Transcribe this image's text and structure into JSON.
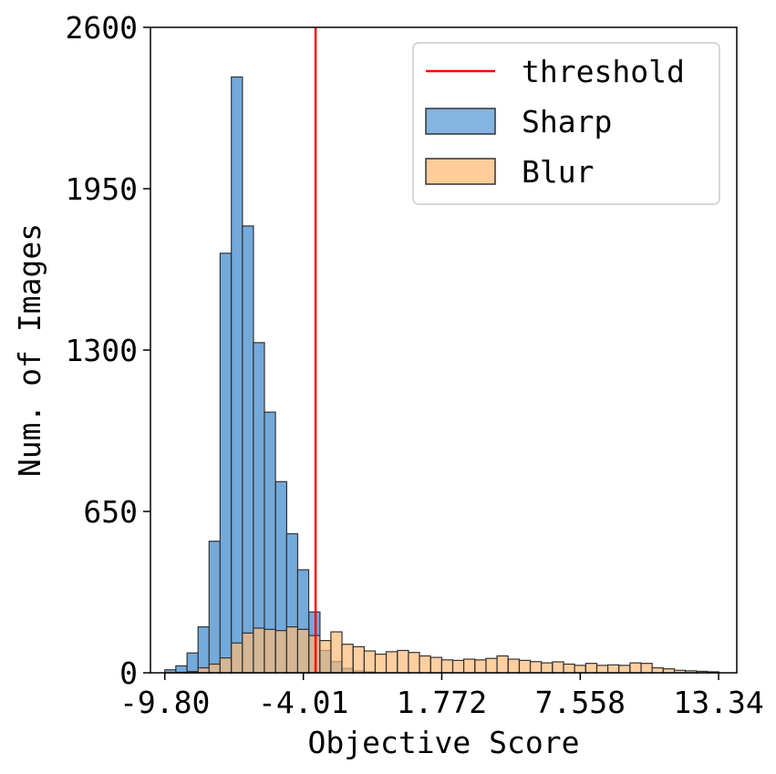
{
  "chart_data": {
    "type": "bar",
    "title": "",
    "xlabel": "Objective Score",
    "ylabel": "Num. of Images",
    "xlim": [
      -10.4,
      14.1
    ],
    "ylim": [
      0,
      2600
    ],
    "xticks": [
      -9.8,
      -4.01,
      1.772,
      7.558,
      13.34
    ],
    "xtick_labels": [
      "-9.80",
      "-4.01",
      "1.772",
      "7.558",
      "13.34"
    ],
    "yticks": [
      0,
      650,
      1300,
      1950,
      2600
    ],
    "ytick_labels": [
      "0",
      "650",
      "1300",
      "1950",
      "2600"
    ],
    "bin_width": 0.463,
    "threshold": {
      "name": "threshold",
      "x": -3.5,
      "color": "#ff0000"
    },
    "legend": {
      "placement": "top-right",
      "entries": [
        "threshold",
        "Sharp",
        "Blur"
      ]
    },
    "grid": false,
    "series": [
      {
        "name": "Sharp",
        "color": "#5b9bd5",
        "bins": [
          [
            -9.8,
            12
          ],
          [
            -9.34,
            28
          ],
          [
            -8.87,
            80
          ],
          [
            -8.41,
            185
          ],
          [
            -7.95,
            530
          ],
          [
            -7.49,
            1690
          ],
          [
            -7.02,
            2400
          ],
          [
            -6.56,
            1800
          ],
          [
            -6.1,
            1330
          ],
          [
            -5.64,
            1050
          ],
          [
            -5.17,
            770
          ],
          [
            -4.71,
            560
          ],
          [
            -4.25,
            415
          ],
          [
            -3.78,
            245
          ],
          [
            -3.32,
            90
          ],
          [
            -2.86,
            45
          ],
          [
            -2.4,
            18
          ],
          [
            -1.93,
            8
          ],
          [
            -1.47,
            4
          ]
        ]
      },
      {
        "name": "Blur",
        "color": "#ffbb78",
        "bins": [
          [
            -9.34,
            2
          ],
          [
            -8.87,
            5
          ],
          [
            -8.41,
            20
          ],
          [
            -7.95,
            35
          ],
          [
            -7.49,
            60
          ],
          [
            -7.02,
            120
          ],
          [
            -6.56,
            160
          ],
          [
            -6.1,
            180
          ],
          [
            -5.64,
            175
          ],
          [
            -5.17,
            170
          ],
          [
            -4.71,
            185
          ],
          [
            -4.25,
            175
          ],
          [
            -3.78,
            150
          ],
          [
            -3.32,
            130
          ],
          [
            -2.86,
            165
          ],
          [
            -2.4,
            115
          ],
          [
            -1.93,
            105
          ],
          [
            -1.47,
            88
          ],
          [
            -1.01,
            75
          ],
          [
            -0.55,
            85
          ],
          [
            -0.08,
            90
          ],
          [
            0.38,
            82
          ],
          [
            0.84,
            68
          ],
          [
            1.31,
            62
          ],
          [
            1.77,
            52
          ],
          [
            2.23,
            50
          ],
          [
            2.69,
            55
          ],
          [
            3.16,
            52
          ],
          [
            3.62,
            58
          ],
          [
            4.08,
            68
          ],
          [
            4.55,
            55
          ],
          [
            5.01,
            50
          ],
          [
            5.47,
            45
          ],
          [
            5.93,
            40
          ],
          [
            6.4,
            44
          ],
          [
            6.86,
            35
          ],
          [
            7.32,
            30
          ],
          [
            7.79,
            38
          ],
          [
            8.25,
            30
          ],
          [
            8.71,
            32
          ],
          [
            9.17,
            30
          ],
          [
            9.64,
            40
          ],
          [
            10.1,
            38
          ],
          [
            10.56,
            20
          ],
          [
            11.03,
            16
          ],
          [
            11.49,
            10
          ],
          [
            11.95,
            8
          ],
          [
            12.41,
            6
          ],
          [
            12.88,
            4
          ]
        ]
      }
    ]
  }
}
